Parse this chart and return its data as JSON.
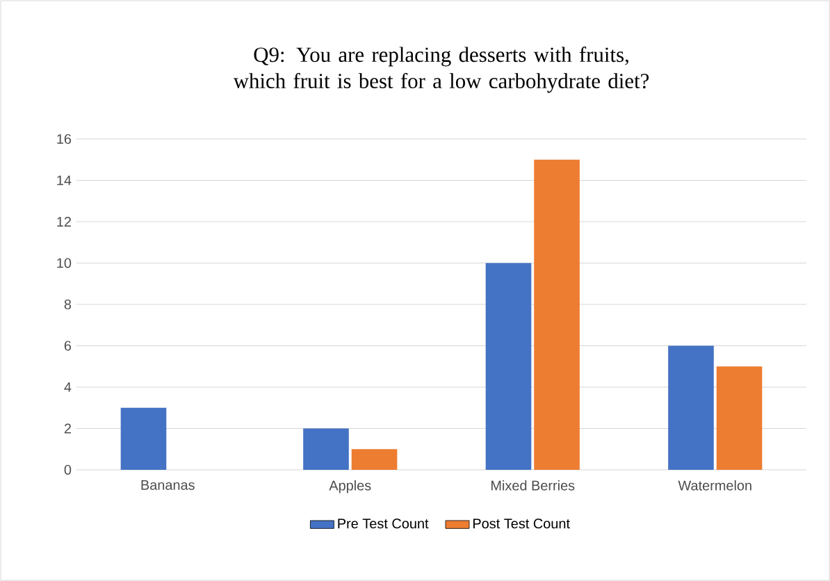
{
  "chart_data": {
    "type": "bar",
    "title": "Q9: You are replacing desserts with fruits, which fruit is best for a low carbohydrate diet?",
    "categories": [
      "Bananas",
      "Apples",
      "Mixed Berries",
      "Watermelon"
    ],
    "series": [
      {
        "name": "Pre Test Count",
        "color": "#4472c4",
        "values": [
          3,
          2,
          10,
          6
        ]
      },
      {
        "name": "Post Test Count",
        "color": "#ed7d31",
        "values": [
          0,
          1,
          15,
          5
        ]
      }
    ],
    "ylim": [
      0,
      16
    ],
    "yticks": [
      0,
      2,
      4,
      6,
      8,
      10,
      12,
      14,
      16
    ],
    "grid": "y",
    "legend": "bottom"
  }
}
